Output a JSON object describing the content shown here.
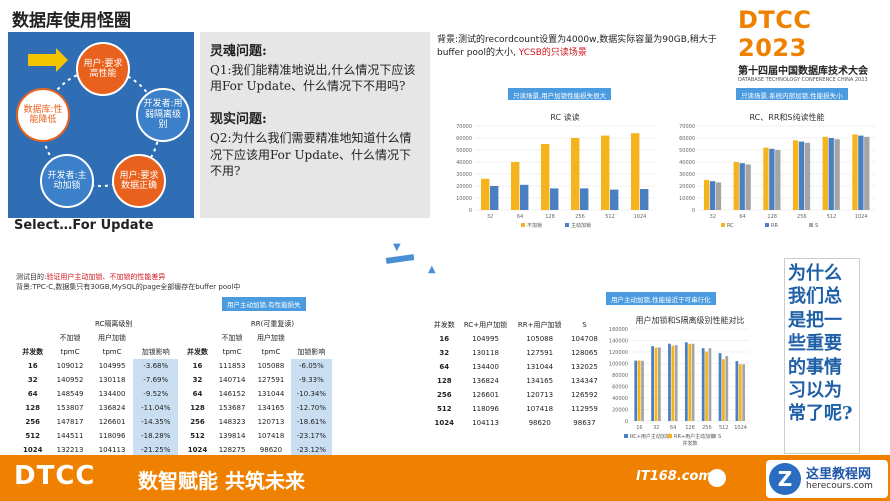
{
  "slide_title": "数据库使用怪圈",
  "cycle": {
    "center_label": "数据库:性能降低",
    "nodes": [
      {
        "label": "用户:要求高性能"
      },
      {
        "label": "开发者:用弱隔离级别"
      },
      {
        "label": "用户:要求数据正确"
      },
      {
        "label": "开发者:主动加锁"
      },
      {
        "label": "数据库:性能降低"
      }
    ],
    "caption": "Select…For Update"
  },
  "questions": {
    "soul_heading": "灵魂问题:",
    "soul_text": "Q1:我们能精准地说出,什么情况下应该用For Update、什么情况下不用吗?",
    "real_heading": "现实问题:",
    "real_text": "Q2:为什么我们需要精准地知道什么情况下应该用For Update、什么情况下不用?"
  },
  "rc_header": {
    "line1": "背景:测试的recordcount设置为4000w,数据实际容量为90GB,稍大于buffer pool的大小,",
    "highlight": "YCSB的只读场景"
  },
  "logo": {
    "big": "DTCC 2023",
    "cn": "第十四届中国数据库技术大会",
    "en": "DATABASE TECHNOLOGY CONFERENCE CHINA 2023"
  },
  "chart_data": [
    {
      "type": "bar",
      "title": "RC 读读",
      "callout": "只读场景,用户加锁性能损失很大",
      "categories": [
        "32",
        "64",
        "128",
        "256",
        "512",
        "1024"
      ],
      "series": [
        {
          "name": "不加锁",
          "values": [
            26000,
            40000,
            55000,
            60000,
            62000,
            64000
          ]
        },
        {
          "name": "主动加锁",
          "values": [
            20000,
            21000,
            18000,
            18000,
            17000,
            17500
          ]
        }
      ],
      "ylim": [
        0,
        70000
      ],
      "yticks": [
        "0",
        "10000",
        "20000",
        "30000",
        "40000",
        "50000",
        "60000",
        "70000"
      ],
      "legend_position": "bottom"
    },
    {
      "type": "bar",
      "title": "RC、RR和S纯读性能",
      "callout": "只读场景,系统内部加锁,性能损失小",
      "categories": [
        "32",
        "64",
        "128",
        "256",
        "512",
        "1024"
      ],
      "series": [
        {
          "name": "RC",
          "values": [
            25000,
            40000,
            52000,
            58000,
            61000,
            63000
          ]
        },
        {
          "name": "RR",
          "values": [
            24000,
            39000,
            51000,
            57000,
            60000,
            62000
          ]
        },
        {
          "name": "S",
          "values": [
            23000,
            38000,
            50000,
            56000,
            59000,
            61000
          ]
        }
      ],
      "ylim": [
        0,
        70000
      ],
      "yticks": [
        "0",
        "10000",
        "20000",
        "30000",
        "40000",
        "50000",
        "60000",
        "70000"
      ],
      "legend_position": "bottom"
    },
    {
      "type": "bar",
      "title": "用户加锁和S隔离级别性能对比",
      "callout": "用户主动加锁,性能接近于可串行化",
      "categories": [
        "16",
        "32",
        "64",
        "128",
        "256",
        "512",
        "1024"
      ],
      "series": [
        {
          "name": "RC+用户主动加锁",
          "values": [
            104995,
            130118,
            134400,
            136824,
            126601,
            118096,
            104113
          ]
        },
        {
          "name": "RR+用户主动加锁",
          "values": [
            105088,
            127591,
            131044,
            134165,
            120713,
            107418,
            98620
          ]
        },
        {
          "name": "S",
          "values": [
            104708,
            128065,
            132025,
            134347,
            126592,
            112959,
            98637
          ]
        }
      ],
      "ylim": [
        0,
        160000
      ],
      "yticks": [
        "0",
        "20000",
        "40000",
        "60000",
        "80000",
        "100000",
        "120000",
        "140000",
        "160000"
      ],
      "xlabel": "并发数",
      "legend_position": "bottom"
    }
  ],
  "test_header": {
    "purpose_label": "测试目的:",
    "purpose_text": "验证用户主动加锁、不加锁的性能差异",
    "background_text": "背景:TPC-C,数据集只有30GB,MySQL的page全部缓存在buffer pool中",
    "callout": "用户主动加锁,有性能损失"
  },
  "tables": {
    "rc": {
      "title": "RC隔离级别",
      "col_groups": [
        "不加锁",
        "用户加锁"
      ],
      "sub": [
        "tpmC",
        "tpmC",
        "加锁影响"
      ],
      "row_label": "并发数",
      "rows": [
        [
          "16",
          "109012",
          "104995",
          "-3.68%"
        ],
        [
          "32",
          "140952",
          "130118",
          "-7.69%"
        ],
        [
          "64",
          "148549",
          "134400",
          "-9.52%"
        ],
        [
          "128",
          "153807",
          "136824",
          "-11.04%"
        ],
        [
          "256",
          "147817",
          "126601",
          "-14.35%"
        ],
        [
          "512",
          "144511",
          "118096",
          "-18.28%"
        ],
        [
          "1024",
          "132213",
          "104113",
          "-21.25%"
        ]
      ]
    },
    "rr": {
      "title": "RR(可重复读)",
      "col_groups": [
        "不加锁",
        "用户加锁"
      ],
      "sub": [
        "tpmC",
        "tpmC",
        "加锁影响"
      ],
      "row_label": "并发数",
      "rows": [
        [
          "16",
          "111853",
          "105088",
          "-6.05%"
        ],
        [
          "32",
          "140714",
          "127591",
          "-9.33%"
        ],
        [
          "64",
          "146152",
          "131044",
          "-10.34%"
        ],
        [
          "128",
          "153687",
          "134165",
          "-12.70%"
        ],
        [
          "256",
          "148323",
          "120713",
          "-18.61%"
        ],
        [
          "512",
          "139814",
          "107418",
          "-23.17%"
        ],
        [
          "1024",
          "128275",
          "98620",
          "-23.12%"
        ]
      ]
    },
    "cmp": {
      "headers": [
        "并发数",
        "RC+用户加锁",
        "RR+用户加锁",
        "S"
      ],
      "rows": [
        [
          "16",
          "104995",
          "105088",
          "104708"
        ],
        [
          "32",
          "130118",
          "127591",
          "128065"
        ],
        [
          "64",
          "134400",
          "131044",
          "132025"
        ],
        [
          "128",
          "136824",
          "134165",
          "134347"
        ],
        [
          "256",
          "126601",
          "120713",
          "126592"
        ],
        [
          "512",
          "118096",
          "107418",
          "112959"
        ],
        [
          "1024",
          "104113",
          "98620",
          "98637"
        ]
      ]
    }
  },
  "why_text": "为什么我们总是把一些重要的事情习以为常了呢?",
  "footer": {
    "logo": "DTCC",
    "slogan": "数智赋能  共筑未来",
    "partner": "IT168.com",
    "site_cn": "这里教程网",
    "site_en": "herecours.com"
  },
  "colors": {
    "orange": "#f08000",
    "blue": "#2f6eb5",
    "callout": "#4a9be0",
    "orange_bar": "#f5b31d",
    "blue_bar": "#4a7fc2",
    "gray_bar": "#a5a5a5",
    "highlight": "#c9dff1"
  }
}
